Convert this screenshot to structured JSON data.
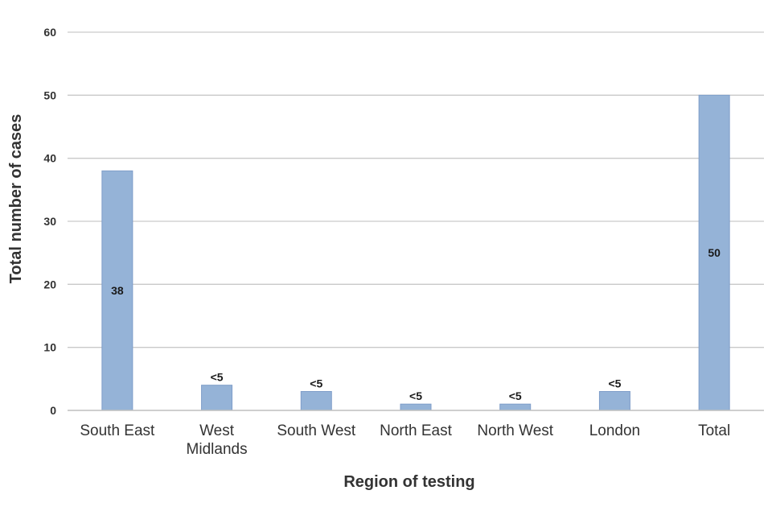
{
  "chart_data": {
    "type": "bar",
    "title": "",
    "xlabel": "Region of testing",
    "ylabel": "Total number of cases",
    "categories": [
      [
        "South East"
      ],
      [
        "West",
        "Midlands"
      ],
      [
        "South West"
      ],
      [
        "North East"
      ],
      [
        "North West"
      ],
      [
        "London"
      ],
      [
        "Total"
      ]
    ],
    "values": [
      38,
      4,
      3,
      1,
      1,
      3,
      50
    ],
    "data_labels": [
      "38",
      "<5",
      "<5",
      "<5",
      "<5",
      "<5",
      "50"
    ],
    "label_inside": [
      true,
      false,
      false,
      false,
      false,
      false,
      true
    ],
    "ylim": [
      0,
      60
    ],
    "yticks": [
      0,
      10,
      20,
      30,
      40,
      50,
      60
    ],
    "grid": true,
    "legend": "none",
    "bar_color": "#95b3d7",
    "bar_edge_color": "#7f9ec9",
    "grid_color": "#c9c9c9",
    "axis_color": "#bfbfbf"
  }
}
